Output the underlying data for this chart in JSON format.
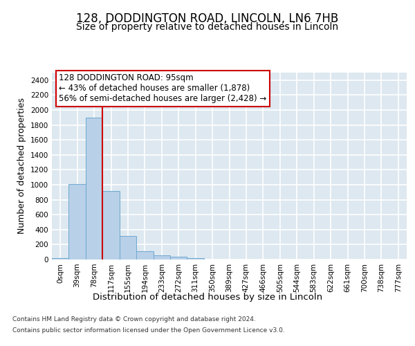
{
  "title_line1": "128, DODDINGTON ROAD, LINCOLN, LN6 7HB",
  "title_line2": "Size of property relative to detached houses in Lincoln",
  "xlabel": "Distribution of detached houses by size in Lincoln",
  "ylabel": "Number of detached properties",
  "categories": [
    "0sqm",
    "39sqm",
    "78sqm",
    "117sqm",
    "155sqm",
    "194sqm",
    "233sqm",
    "272sqm",
    "311sqm",
    "350sqm",
    "389sqm",
    "427sqm",
    "466sqm",
    "505sqm",
    "544sqm",
    "583sqm",
    "622sqm",
    "661sqm",
    "700sqm",
    "738sqm",
    "777sqm"
  ],
  "values": [
    20,
    1010,
    1900,
    920,
    315,
    110,
    55,
    35,
    20,
    0,
    0,
    0,
    0,
    0,
    0,
    0,
    0,
    0,
    0,
    0,
    0
  ],
  "bar_color": "#b8d0e8",
  "bar_edge_color": "#6fa8d0",
  "vline_color": "#cc0000",
  "annotation_text_line1": "128 DODDINGTON ROAD: 95sqm",
  "annotation_text_line2": "← 43% of detached houses are smaller (1,878)",
  "annotation_text_line3": "56% of semi-detached houses are larger (2,428) →",
  "annotation_box_color": "#cc0000",
  "ylim": [
    0,
    2500
  ],
  "yticks": [
    0,
    200,
    400,
    600,
    800,
    1000,
    1200,
    1400,
    1600,
    1800,
    2000,
    2200,
    2400
  ],
  "bg_color": "#dde8f0",
  "grid_color": "#ffffff",
  "footer_line1": "Contains HM Land Registry data © Crown copyright and database right 2024.",
  "footer_line2": "Contains public sector information licensed under the Open Government Licence v3.0.",
  "title_fontsize": 12,
  "subtitle_fontsize": 10,
  "tick_fontsize": 7.5,
  "ylabel_fontsize": 9,
  "xlabel_fontsize": 9.5
}
